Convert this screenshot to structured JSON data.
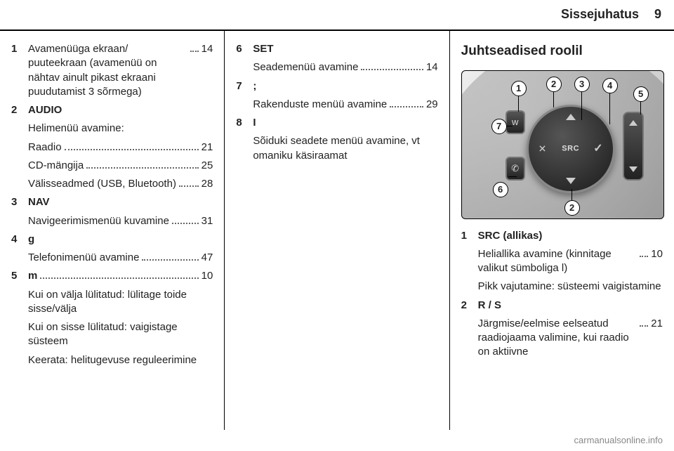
{
  "header": {
    "title": "Sissejuhatus",
    "page": "9"
  },
  "col1": [
    {
      "num": "1",
      "label": "Avamenüüga ekraan/ puuteekraan (avamenüü on nähtav ainult pikast ekraani puudutamist 3 sõrmega)",
      "page": "14"
    },
    {
      "num": "2",
      "label": "AUDIO",
      "bold": true
    },
    {
      "sub": true,
      "label": "Helimenüü avamine:",
      "nopg": true
    },
    {
      "sub": true,
      "label": "Raadio",
      "page": "21"
    },
    {
      "sub": true,
      "label": "CD-mängija",
      "page": "25"
    },
    {
      "sub": true,
      "label": "Välisseadmed (USB, Bluetooth)",
      "page": "28"
    },
    {
      "num": "3",
      "label": "NAV",
      "bold": true
    },
    {
      "sub": true,
      "label": "Navigeerimismenüü kuvamine",
      "page": "31"
    },
    {
      "num": "4",
      "label": "g",
      "bold": true
    },
    {
      "sub": true,
      "label": "Telefonimenüü avamine",
      "page": "47"
    },
    {
      "num": "5",
      "label": "m",
      "bold": true,
      "page": "10"
    },
    {
      "sub": true,
      "label": "Kui on välja lülitatud: lülitage toide sisse/välja",
      "nopg": true
    },
    {
      "sub": true,
      "label": "Kui on sisse lülitatud: vaigistage süsteem",
      "nopg": true
    },
    {
      "sub": true,
      "label": "Keerata: helitugevuse reguleerimine",
      "nopg": true
    }
  ],
  "col2": [
    {
      "num": "6",
      "label": "SET",
      "bold": true
    },
    {
      "sub": true,
      "label": "Seademenüü avamine",
      "page": "14"
    },
    {
      "num": "7",
      "label": ";",
      "bold": true
    },
    {
      "sub": true,
      "label": "Rakenduste menüü avamine",
      "page": "29"
    },
    {
      "num": "8",
      "label": "I",
      "bold": true
    },
    {
      "sub": true,
      "label": "Sõiduki seadete menüü avamine, vt omaniku käsiraamat",
      "nopg": true
    }
  ],
  "col3": {
    "heading": "Juhtseadised roolil",
    "diagram": {
      "src_label": "SRC",
      "callouts": [
        "1",
        "2",
        "3",
        "4",
        "5",
        "6",
        "7",
        "2"
      ]
    },
    "items": [
      {
        "num": "1",
        "label": "SRC (allikas)",
        "bold": true
      },
      {
        "sub": true,
        "label": "Heliallika avamine (kinnitage valikut sümboliga l)",
        "page": "10"
      },
      {
        "sub": true,
        "label": "Pikk vajutamine: süsteemi vaigistamine",
        "nopg": true
      },
      {
        "num": "2",
        "label": "R / S",
        "bold": true
      },
      {
        "sub": true,
        "label": "Järgmise/eelmise eelseatud raadiojaama valimine, kui raadio on aktiivne",
        "page": "21"
      }
    ]
  },
  "watermark": "carmanualsonline.info"
}
